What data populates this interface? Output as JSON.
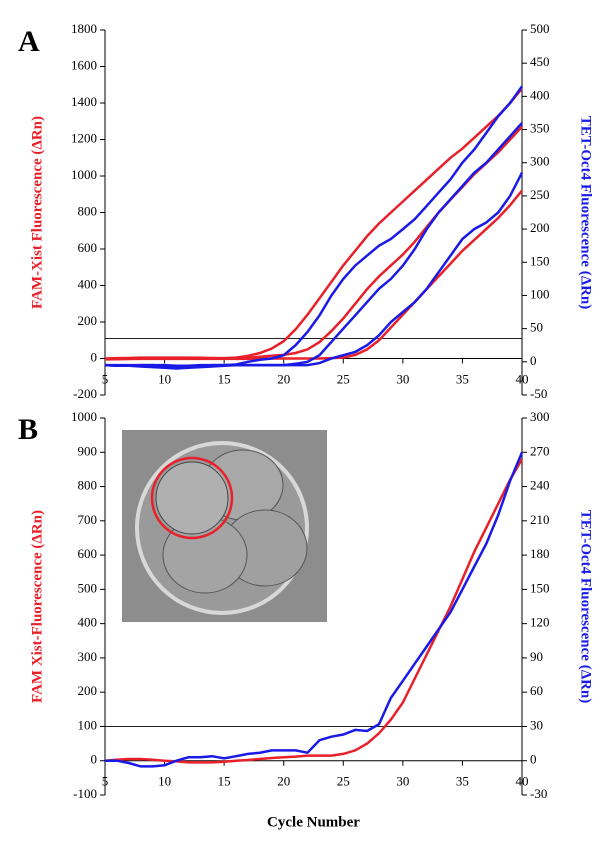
{
  "chart_data": [
    {
      "type": "line",
      "panel_label": "A",
      "y_label": "FAM-Xist Fluorescence (ΔRn)",
      "y2_label": "TET-Oct4 Fluorescence (ΔRn)",
      "x": [
        5,
        6,
        7,
        8,
        9,
        10,
        11,
        12,
        13,
        14,
        15,
        16,
        17,
        18,
        19,
        20,
        21,
        22,
        23,
        24,
        25,
        26,
        27,
        28,
        29,
        30,
        31,
        32,
        33,
        34,
        35,
        36,
        37,
        38,
        39,
        40
      ],
      "xlim": [
        5,
        40
      ],
      "xticks": [
        5,
        10,
        15,
        20,
        25,
        30,
        35,
        40
      ],
      "ylim": [
        -200,
        1800
      ],
      "yticks": [
        -200,
        0,
        200,
        400,
        600,
        800,
        1000,
        1200,
        1400,
        1600,
        1800
      ],
      "y2lim": [
        -50,
        500
      ],
      "y2ticks": [
        -50,
        0,
        50,
        100,
        150,
        200,
        250,
        300,
        350,
        400,
        450,
        500
      ],
      "threshold": 110,
      "series": [
        {
          "color": "#e8202a",
          "values": [
            0,
            2,
            3,
            5,
            5,
            5,
            5,
            5,
            4,
            3,
            2,
            5,
            15,
            30,
            55,
            95,
            160,
            240,
            330,
            420,
            510,
            590,
            670,
            740,
            800,
            860,
            920,
            980,
            1040,
            1100,
            1150,
            1210,
            1270,
            1330,
            1400,
            1480
          ]
        },
        {
          "color": "#e8202a",
          "values": [
            -5,
            -4,
            -3,
            -2,
            -2,
            -2,
            -2,
            -2,
            -1,
            -1,
            0,
            0,
            5,
            10,
            15,
            20,
            30,
            50,
            90,
            150,
            220,
            300,
            380,
            450,
            510,
            570,
            640,
            720,
            800,
            870,
            940,
            1010,
            1070,
            1130,
            1200,
            1270
          ]
        },
        {
          "color": "#e8202a",
          "values": [
            -2,
            -2,
            -1,
            -1,
            0,
            0,
            0,
            -1,
            -2,
            -2,
            -2,
            -2,
            -2,
            -1,
            0,
            0,
            0,
            0,
            0,
            2,
            5,
            20,
            50,
            100,
            170,
            240,
            310,
            380,
            450,
            520,
            590,
            650,
            710,
            770,
            840,
            920
          ]
        },
        {
          "color": "#1a1ae6",
          "axis": "y2",
          "values": [
            -5,
            -6,
            -6,
            -5,
            -5,
            -6,
            -7,
            -7,
            -6,
            -5,
            -5,
            -4,
            0,
            3,
            5,
            10,
            25,
            45,
            70,
            100,
            125,
            145,
            160,
            175,
            185,
            200,
            215,
            235,
            255,
            275,
            300,
            320,
            345,
            370,
            390,
            415
          ]
        },
        {
          "color": "#1a1ae6",
          "axis": "y2",
          "values": [
            -5,
            -5,
            -5,
            -5,
            -5,
            -5,
            -6,
            -6,
            -5,
            -5,
            -5,
            -5,
            -5,
            -5,
            -5,
            -5,
            -3,
            0,
            10,
            30,
            50,
            70,
            90,
            110,
            125,
            145,
            170,
            200,
            225,
            245,
            265,
            285,
            300,
            320,
            340,
            360
          ]
        },
        {
          "color": "#1a1ae6",
          "axis": "y2",
          "values": [
            -5,
            -6,
            -6,
            -7,
            -8,
            -9,
            -10,
            -9,
            -8,
            -7,
            -6,
            -5,
            -5,
            -5,
            -5,
            -5,
            -5,
            -5,
            -2,
            5,
            10,
            15,
            25,
            40,
            60,
            75,
            90,
            110,
            135,
            160,
            185,
            200,
            210,
            225,
            250,
            285
          ]
        }
      ]
    },
    {
      "type": "line",
      "panel_label": "B",
      "y_label": "FAM Xist-Fluorescence (ΔRn)",
      "y2_label": "TET-Oct4 Fluorescence (ΔRn)",
      "x_label": "Cycle Number",
      "x": [
        5,
        6,
        7,
        8,
        9,
        10,
        11,
        12,
        13,
        14,
        15,
        16,
        17,
        18,
        19,
        20,
        21,
        22,
        23,
        24,
        25,
        26,
        27,
        28,
        29,
        30,
        31,
        32,
        33,
        34,
        35,
        36,
        37,
        38,
        39,
        40
      ],
      "xlim": [
        5,
        40
      ],
      "xticks": [
        5,
        10,
        15,
        20,
        25,
        30,
        35,
        40
      ],
      "ylim": [
        -100,
        1000
      ],
      "yticks": [
        -100,
        0,
        100,
        200,
        300,
        400,
        500,
        600,
        700,
        800,
        900,
        1000
      ],
      "y2lim": [
        -30,
        300
      ],
      "y2ticks": [
        -30,
        0,
        30,
        60,
        90,
        120,
        150,
        180,
        210,
        240,
        270,
        300
      ],
      "threshold": 100,
      "series": [
        {
          "color": "#e8202a",
          "values": [
            0,
            3,
            5,
            5,
            3,
            0,
            -2,
            -5,
            -5,
            -5,
            -3,
            0,
            2,
            5,
            8,
            10,
            12,
            15,
            15,
            15,
            20,
            30,
            50,
            80,
            120,
            170,
            240,
            310,
            380,
            450,
            530,
            610,
            680,
            750,
            820,
            880
          ]
        },
        {
          "color": "#1a1ae6",
          "axis": "y2",
          "values": [
            0,
            0,
            -2,
            -5,
            -5,
            -4,
            0,
            3,
            3,
            4,
            2,
            4,
            6,
            7,
            9,
            9,
            9,
            7,
            18,
            21,
            23,
            27,
            26,
            32,
            55,
            70,
            85,
            100,
            115,
            130,
            150,
            170,
            190,
            215,
            245,
            270
          ]
        }
      ]
    }
  ]
}
